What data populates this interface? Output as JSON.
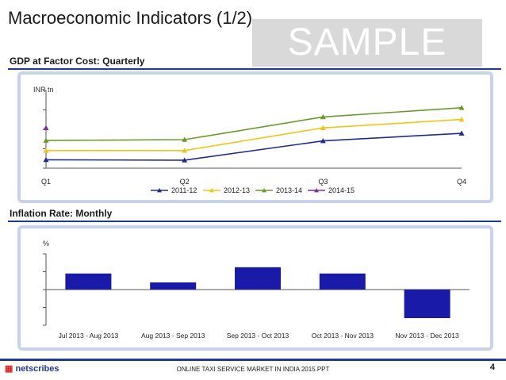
{
  "slide": {
    "title": "Macroeconomic Indicators (1/2)",
    "watermark": "SAMPLE",
    "footer_text": "ONLINE TAXI SERVICE MARKET IN INDIA 2015.PPT",
    "page_number": "4",
    "logo_text": "netscribes"
  },
  "sections": {
    "gdp_label": "GDP at Factor Cost: Quarterly",
    "inflation_label": "Inflation Rate: Monthly"
  },
  "chart_data": [
    {
      "type": "line",
      "unit_label": "INR tn",
      "categories": [
        "Q1",
        "Q2",
        "Q3",
        "Q4"
      ],
      "series": [
        {
          "name": "2011-12",
          "color": "#1f2d8a",
          "values": [
            13.0,
            12.9,
            17.5,
            19.3
          ]
        },
        {
          "name": "2012-13",
          "color": "#f0c419",
          "values": [
            15.2,
            15.2,
            20.6,
            22.6
          ]
        },
        {
          "name": "2013-14",
          "color": "#6a9a2a",
          "values": [
            17.6,
            17.8,
            23.2,
            25.4
          ]
        },
        {
          "name": "2014-15",
          "color": "#7b2f9e",
          "values": [
            20.6,
            null,
            null,
            null
          ]
        }
      ],
      "ylim": [
        11,
        28
      ],
      "legend": "bottom"
    },
    {
      "type": "bar",
      "unit_label": "%",
      "categories": [
        "Jul 2013 - Aug 2013",
        "Aug 2013 - Sep 2013",
        "Sep 2013 - Oct 2013",
        "Oct 2013 - Nov 2013",
        "Nov 2013 -  Dec 2013"
      ],
      "values": [
        0.9,
        0.4,
        1.25,
        0.9,
        -1.6
      ],
      "ylim": [
        -2,
        2
      ],
      "color": "#1a1aa8"
    }
  ]
}
